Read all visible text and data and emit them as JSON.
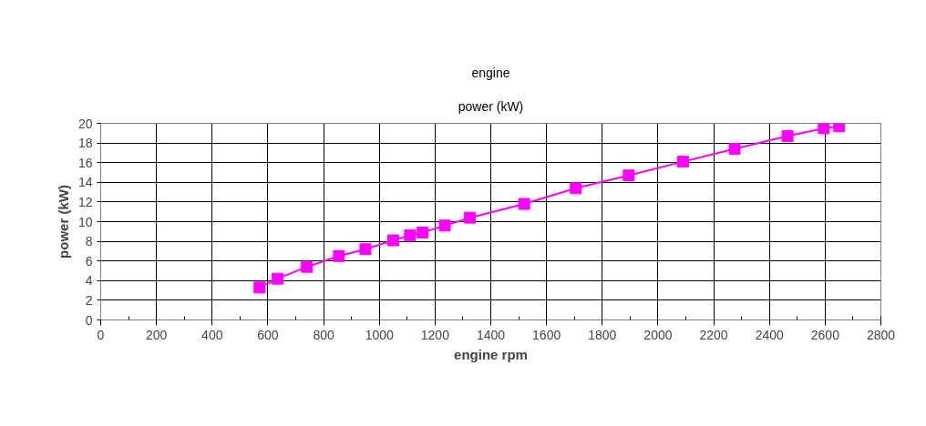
{
  "chart_data": {
    "type": "line",
    "title": "engine",
    "subtitle": "power (kW)",
    "xlabel": "engine rpm",
    "ylabel": "power (kW)",
    "x": [
      570,
      635,
      740,
      855,
      950,
      1050,
      1110,
      1155,
      1235,
      1325,
      1520,
      1705,
      1895,
      2090,
      2275,
      2465,
      2595,
      2650
    ],
    "series": [
      {
        "color": "#ff00ff",
        "values": [
          3.3,
          4.2,
          5.4,
          6.5,
          7.2,
          8.1,
          8.6,
          8.9,
          9.6,
          10.4,
          11.8,
          13.4,
          14.7,
          16.1,
          17.4,
          18.7,
          19.5,
          19.7
        ]
      }
    ],
    "xlim": [
      0,
      2800
    ],
    "xticks": [
      0,
      200,
      400,
      600,
      800,
      1000,
      1200,
      1400,
      1600,
      1800,
      2000,
      2200,
      2400,
      2600,
      2800
    ],
    "ylim": [
      0,
      20
    ],
    "yticks": [
      0,
      2,
      4,
      6,
      8,
      10,
      12,
      14,
      16,
      18,
      20
    ],
    "grid": true,
    "marker": "square",
    "line_style": "solid"
  }
}
